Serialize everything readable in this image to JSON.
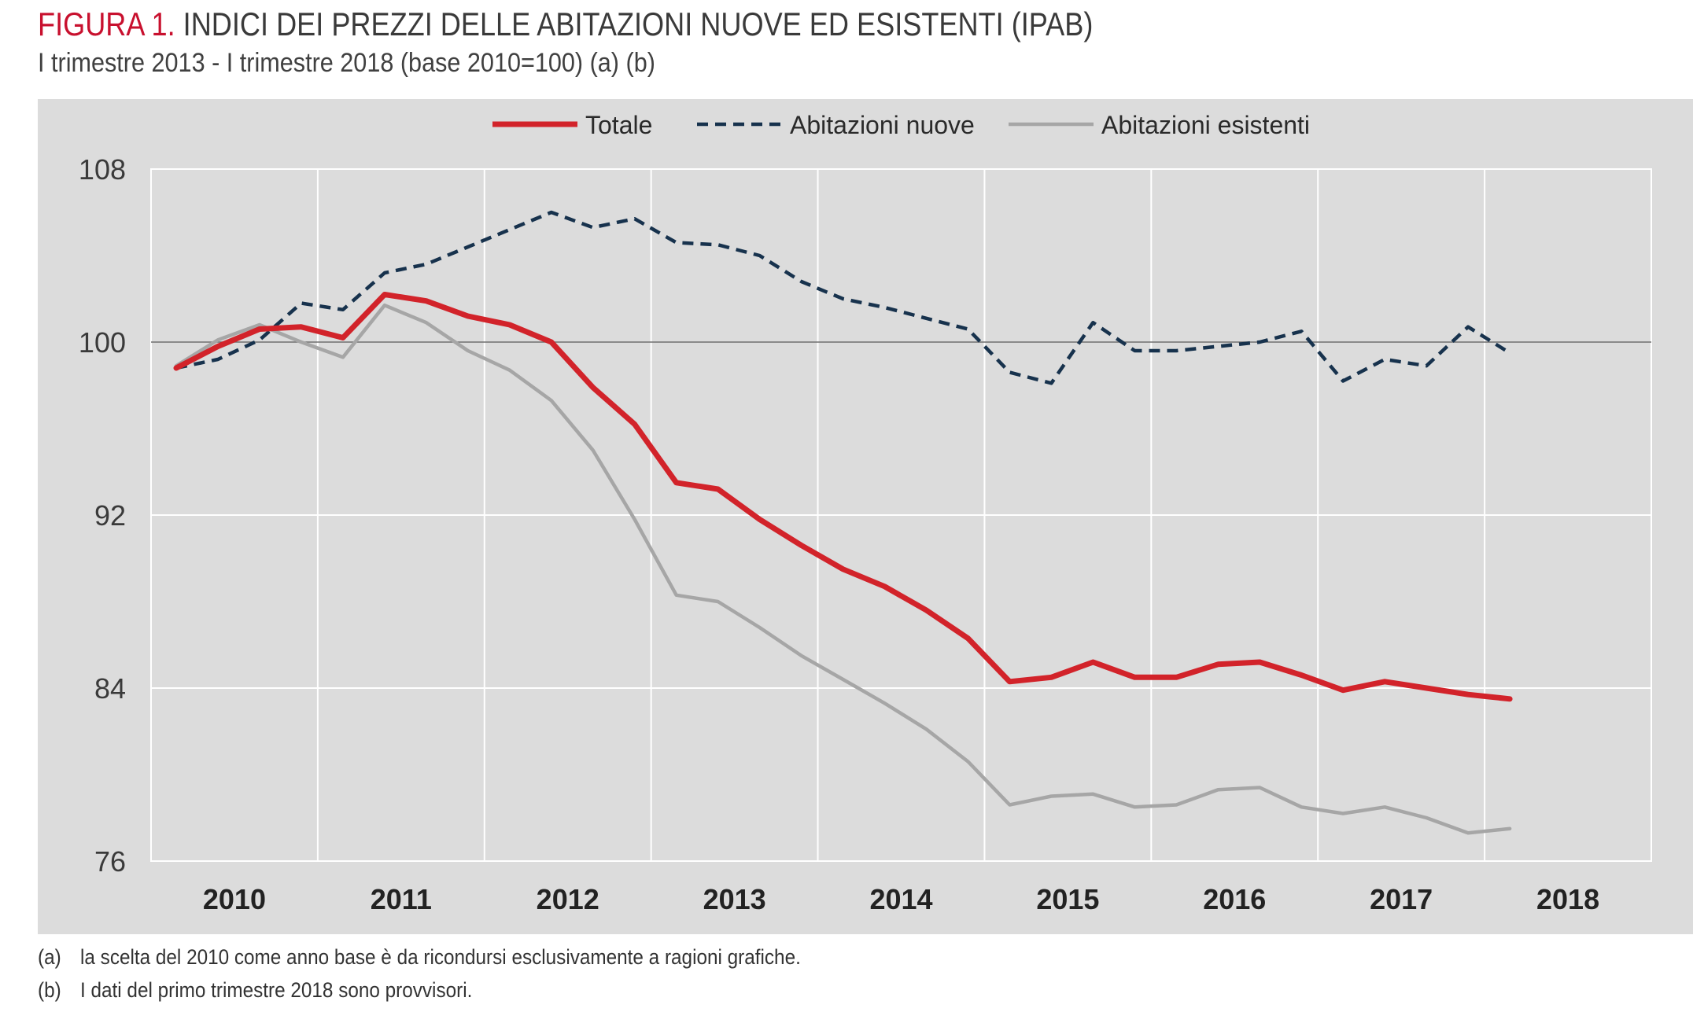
{
  "header": {
    "title_lead": "FIGURA 1.",
    "title_rest": "INDICI DEI PREZZI DELLE ABITAZIONI NUOVE ED ESISTENTI (IPAB)",
    "subtitle": "I trimestre 2013 - I trimestre 2018 (base 2010=100) (a) (b)"
  },
  "notes": [
    {
      "mark": "(a)",
      "text": "la scelta del 2010 come anno base è da ricondursi esclusivamente a ragioni grafiche."
    },
    {
      "mark": "(b)",
      "text": "I dati del primo trimestre 2018 sono provvisori."
    }
  ],
  "chart_data": {
    "type": "line",
    "title": "INDICI DEI PREZZI DELLE ABITAZIONI NUOVE ED ESISTENTI (IPAB)",
    "xlabel": "",
    "ylabel": "",
    "ylim": [
      76,
      108
    ],
    "yticks": [
      76,
      84,
      92,
      100,
      108
    ],
    "xticks": [
      "2010",
      "2011",
      "2012",
      "2013",
      "2014",
      "2015",
      "2016",
      "2017",
      "2018"
    ],
    "reference_line": 100,
    "legend_position": "top",
    "x": [
      "2010 Q1",
      "2010 Q2",
      "2010 Q3",
      "2010 Q4",
      "2011 Q1",
      "2011 Q2",
      "2011 Q3",
      "2011 Q4",
      "2012 Q1",
      "2012 Q2",
      "2012 Q3",
      "2012 Q4",
      "2013 Q1",
      "2013 Q2",
      "2013 Q3",
      "2013 Q4",
      "2014 Q1",
      "2014 Q2",
      "2014 Q3",
      "2014 Q4",
      "2015 Q1",
      "2015 Q2",
      "2015 Q3",
      "2015 Q4",
      "2016 Q1",
      "2016 Q2",
      "2016 Q3",
      "2016 Q4",
      "2017 Q1",
      "2017 Q2",
      "2017 Q3",
      "2017 Q4",
      "2018 Q1"
    ],
    "series": [
      {
        "name": "Totale",
        "color": "#d2232a",
        "dash": "solid",
        "values": [
          98.8,
          99.8,
          100.6,
          100.7,
          100.2,
          102.2,
          101.9,
          101.2,
          100.8,
          100.0,
          97.9,
          96.2,
          93.5,
          93.2,
          91.8,
          90.6,
          89.5,
          88.7,
          87.6,
          86.3,
          84.3,
          84.5,
          85.2,
          84.5,
          84.5,
          85.1,
          85.2,
          84.6,
          83.9,
          84.3,
          84.0,
          83.7,
          83.5
        ]
      },
      {
        "name": "Abitazioni nuove",
        "color": "#17324d",
        "dash": "dashed",
        "values": [
          98.8,
          99.2,
          100.1,
          101.8,
          101.5,
          103.2,
          103.6,
          104.4,
          105.2,
          106.0,
          105.3,
          105.7,
          104.6,
          104.5,
          104.0,
          102.8,
          102.0,
          101.6,
          101.1,
          100.6,
          98.6,
          98.1,
          100.9,
          99.6,
          99.6,
          99.8,
          100.0,
          100.5,
          98.2,
          99.2,
          98.9,
          100.7,
          99.5
        ]
      },
      {
        "name": "Abitazioni esistenti",
        "color": "#a6a6a6",
        "dash": "solid",
        "values": [
          98.9,
          100.1,
          100.8,
          100.0,
          99.3,
          101.7,
          100.9,
          99.6,
          98.7,
          97.3,
          95.0,
          91.8,
          88.3,
          88.0,
          86.8,
          85.5,
          84.4,
          83.3,
          82.1,
          80.6,
          78.6,
          79.0,
          79.1,
          78.5,
          78.6,
          79.3,
          79.4,
          78.5,
          78.2,
          78.5,
          78.0,
          77.3,
          77.5
        ]
      }
    ]
  }
}
